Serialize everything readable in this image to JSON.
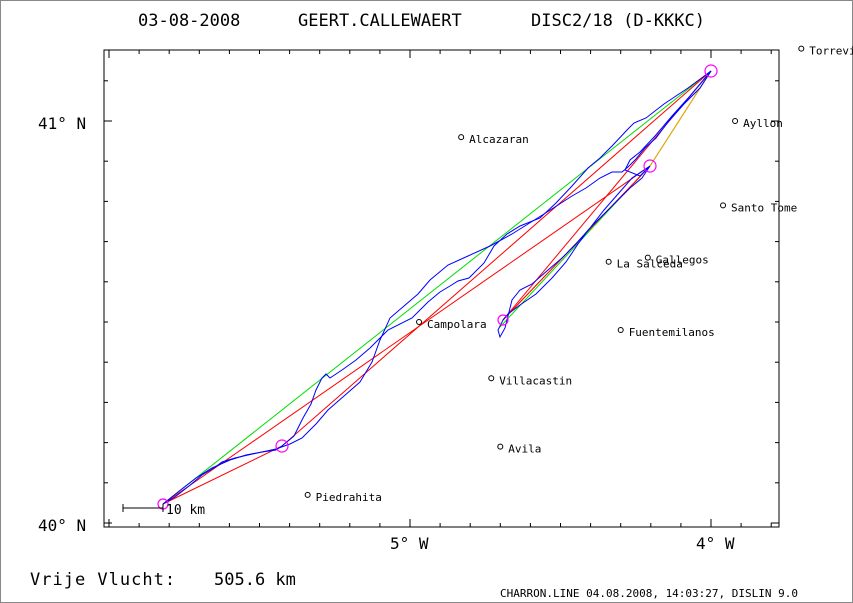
{
  "header": {
    "date": "03-08-2008",
    "pilot": "GEERT.CALLEWAERT",
    "glider": "DISC2/18 (D-KKKC)"
  },
  "axes": {
    "lat_labels": [
      "41° N",
      "40° N"
    ],
    "lon_labels": [
      "5° W",
      "4° W"
    ]
  },
  "towns": [
    {
      "name": "Torrevieja",
      "lon": -3.7,
      "lat": 41.18
    },
    {
      "name": "Ayllon",
      "lon": -3.92,
      "lat": 41.0
    },
    {
      "name": "Alcazaran",
      "lon": -4.83,
      "lat": 40.96
    },
    {
      "name": "Santo Tome",
      "lon": -3.96,
      "lat": 40.79
    },
    {
      "name": "Gallegos",
      "lon": -4.21,
      "lat": 40.66
    },
    {
      "name": "La Salceda",
      "lon": -4.34,
      "lat": 40.65
    },
    {
      "name": "Campolara",
      "lon": -4.97,
      "lat": 40.5
    },
    {
      "name": "Fuentemilanos",
      "lon": -4.3,
      "lat": 40.48
    },
    {
      "name": "Villacastin",
      "lon": -4.73,
      "lat": 40.36
    },
    {
      "name": "Avila",
      "lon": -4.7,
      "lat": 40.19
    },
    {
      "name": "Piedrahita",
      "lon": -5.34,
      "lat": 40.07
    }
  ],
  "scale_label": "10 km",
  "footer": {
    "distance_label": "Vrije Vlucht:",
    "distance_value": "505.6 km",
    "credit": "CHARRON.LINE 04.08.2008, 14:03:27, DISLIN 9.0"
  },
  "colors": {
    "track": "#0000ff",
    "optimized_route": "#ff0000",
    "straight_legs": "#00dd00",
    "orange_legs": "#ff9900",
    "turnpoints": "#ff00ff"
  }
}
